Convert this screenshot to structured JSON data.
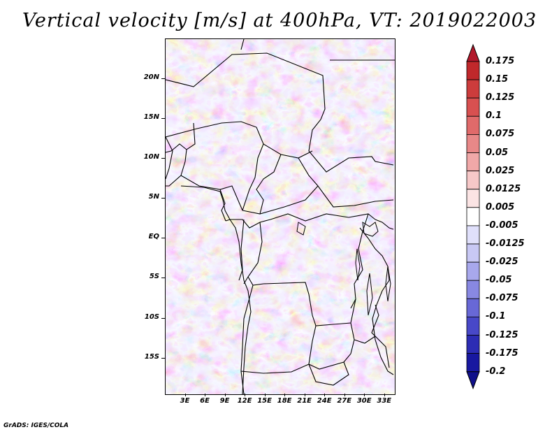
{
  "title": "Vertical velocity [m/s] at 400hPa, VT: 2019022003",
  "footer": "GrADS: IGES/COLA",
  "map": {
    "lat_labels": [
      "20N",
      "15N",
      "10N",
      "5N",
      "EQ",
      "5S",
      "10S",
      "15S"
    ],
    "lon_labels": [
      "3E",
      "6E",
      "9E",
      "12E",
      "15E",
      "18E",
      "21E",
      "24E",
      "27E",
      "30E",
      "33E"
    ],
    "lat_values": [
      20,
      15,
      10,
      5,
      0,
      -5,
      -10,
      -15
    ],
    "lon_values": [
      3,
      6,
      9,
      12,
      15,
      18,
      21,
      24,
      27,
      30,
      33
    ],
    "extent": {
      "lon_min": 0,
      "lon_max": 34.5,
      "lat_min": -19.5,
      "lat_max": 25
    }
  },
  "colorbar": {
    "labels": [
      "0.175",
      "0.15",
      "0.125",
      "0.1",
      "0.075",
      "0.05",
      "0.025",
      "0.0125",
      "0.005",
      "-0.005",
      "-0.0125",
      "-0.025",
      "-0.05",
      "-0.075",
      "-0.1",
      "-0.125",
      "-0.175",
      "-0.2"
    ],
    "colors": [
      "#b2182b",
      "#c0282b",
      "#cc3c3c",
      "#d85050",
      "#e06a6a",
      "#e88888",
      "#f0a8a8",
      "#f6c8c8",
      "#fbe4e4",
      "#ffffff",
      "#e0e0fb",
      "#c8c8f4",
      "#a8a8ec",
      "#8888e2",
      "#6868d6",
      "#4848c8",
      "#2c2cb4",
      "#1818a0",
      "#10108a"
    ]
  }
}
